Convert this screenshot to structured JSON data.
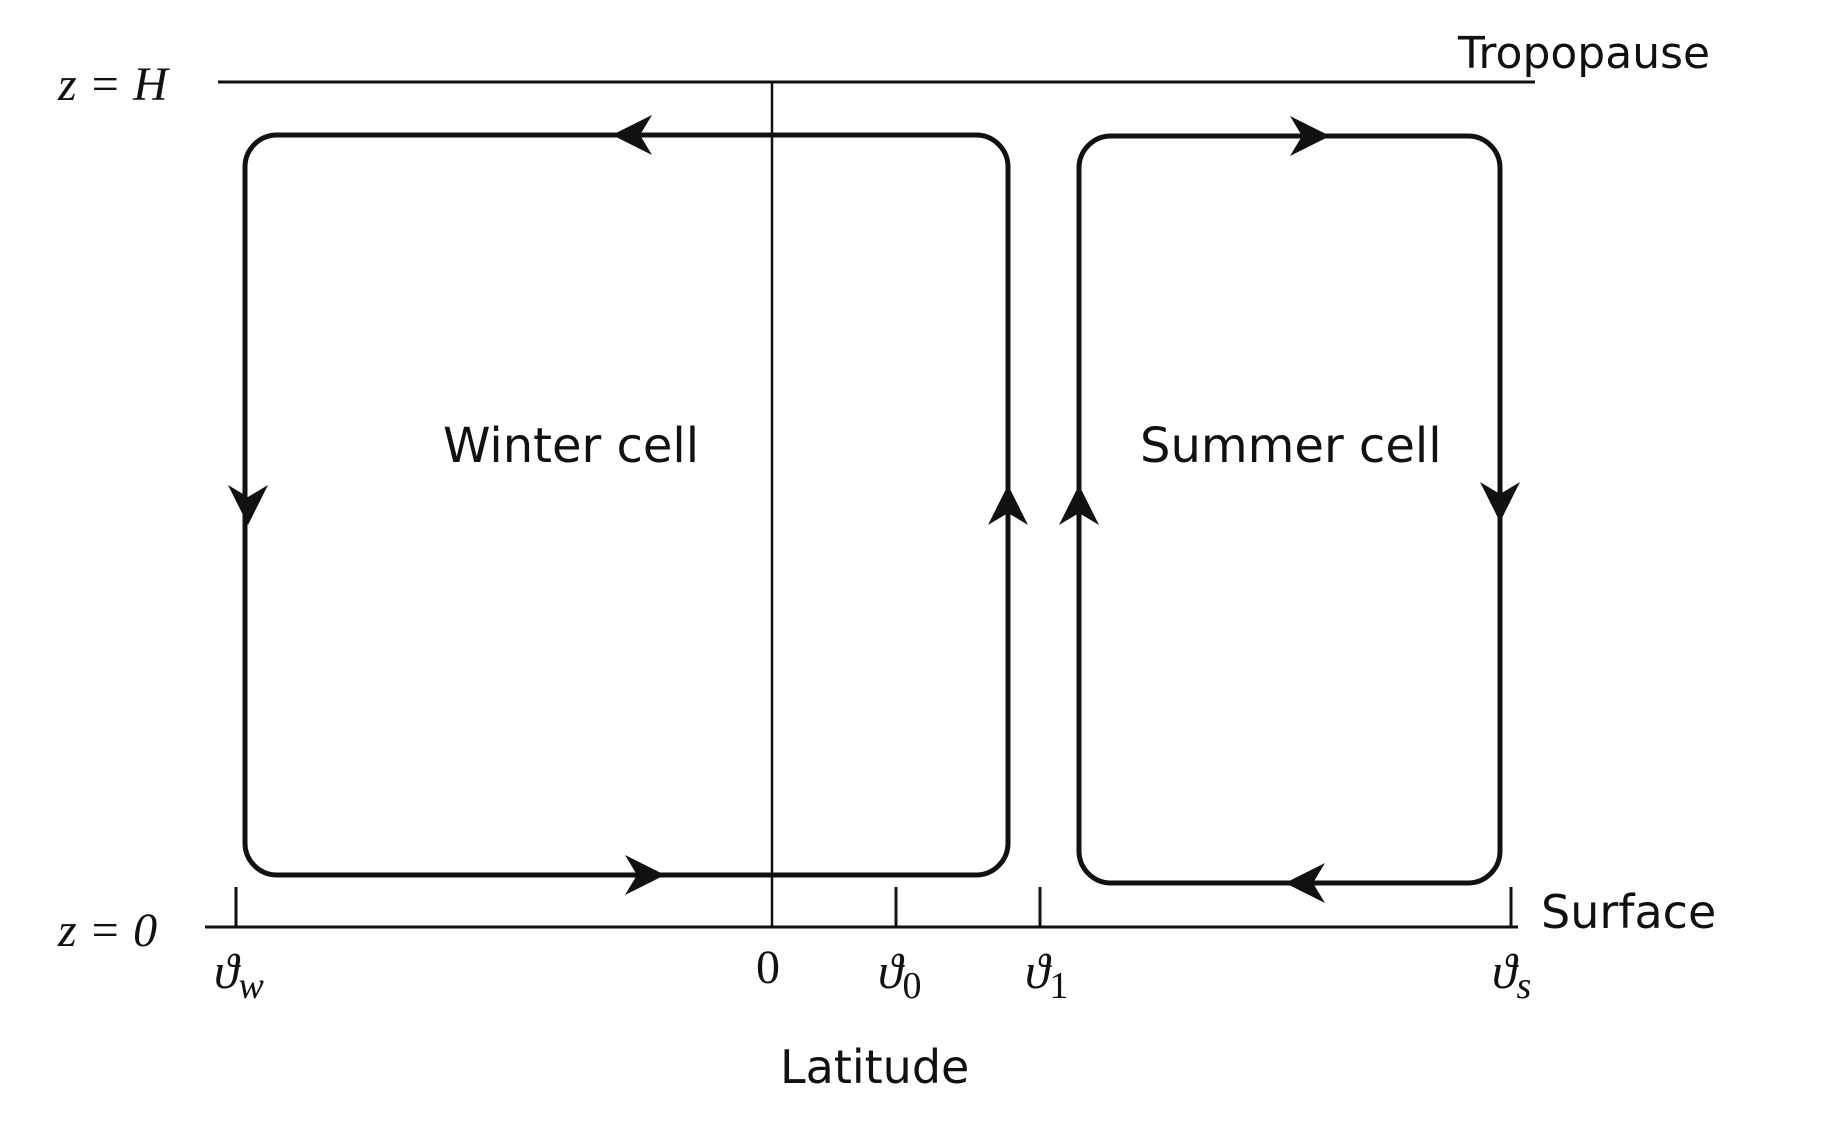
{
  "labels": {
    "tropopause": "Tropopause",
    "surface": "Surface",
    "top_level": "z = H",
    "bottom_level": "z = 0",
    "winter_cell": "Winter cell",
    "summer_cell": "Summer cell",
    "xlabel": "Latitude"
  },
  "ticks": {
    "theta_w": {
      "sym": "ϑ",
      "sub": "w"
    },
    "zero": "0",
    "theta_0": {
      "sym": "ϑ",
      "sub": "0"
    },
    "theta_1": {
      "sym": "ϑ",
      "sub": "1"
    },
    "theta_s": {
      "sym": "ϑ",
      "sub": "s"
    }
  },
  "colors": {
    "ink": "#111111",
    "background": "#ffffff"
  }
}
